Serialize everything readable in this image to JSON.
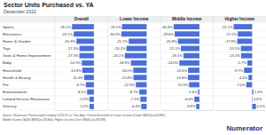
{
  "chart_data": {
    "type": "bar",
    "orientation": "horizontal",
    "title": "Sector Units Purchased vs. YA",
    "subtitle": "December 2022",
    "categories": [
      "Sports",
      "Electronics",
      "Home & Garden",
      "Toys",
      "Tools & Home Improvement",
      "Baby",
      "Household",
      "Health & Beauty",
      "Pet",
      "Entertainment",
      "Limited Service Restaurant",
      "Grocery"
    ],
    "series": [
      {
        "name": "Overall",
        "color": "#4a6fd6",
        "values": [
          -26.2,
          -24.1,
          -20.9,
          -17.3,
          -17.3,
          -14.5,
          -13.8,
          -11.6,
          -9.7,
          -8.1,
          -5.4,
          -5.2
        ],
        "value_labels": [
          "-26.2%",
          "-24.1%",
          "-20.9%",
          "-17.3%",
          "-17.3%",
          "-14.5%",
          "-13.8%",
          "-11.6%",
          "-9.7%",
          "-8.1%",
          "-5.4%",
          "-5.2%"
        ]
      },
      {
        "name": "Lower Income",
        "color": "#4a6fd6",
        "values": [
          -29.5,
          -30.3,
          -21.5,
          -24.2,
          -26.1,
          -18.8,
          -16.0,
          -15.8,
          -12.9,
          -8.7,
          -7.5,
          -6.4
        ],
        "value_labels": [
          "-29.5%",
          "-30.3%",
          "-21.5%",
          "-24.2%",
          "-26.1%",
          "-18.8%",
          "-16.0%",
          "-15.8%",
          "-12.9%",
          "-8.7%",
          "-7.5%",
          "-6.4%"
        ]
      },
      {
        "name": "Middle Income",
        "color": "#4a6fd6",
        "values": [
          -30.8,
          -29.6,
          -25.8,
          -22.1,
          -19.1,
          -24.0,
          -13.6,
          -13.8,
          -12.3,
          -1.6,
          -6.0,
          -3.8
        ],
        "value_labels": [
          "-30.8%",
          "-29.6%",
          "-25.8%",
          "-22.1%",
          "-19.1%",
          "-24.0%",
          "-13.6%",
          "-13.8%",
          "-12.3%",
          "-1.6%",
          "-6.0%",
          "-3.8%"
        ]
      },
      {
        "name": "Higher Income",
        "color": "#4a6fd6",
        "values": [
          -22.1,
          -17.2,
          -17.9,
          -13.5,
          -13.2,
          -5.7,
          -9.7,
          -4.4,
          -7.0,
          1.4,
          0.6,
          4.5
        ],
        "value_labels": [
          "-22.1%",
          "-17.2%",
          "-17.9%",
          "-13.5%",
          "-13.2%",
          "-5.7%",
          "-9.7%",
          "-4.4%",
          "-7.0%",
          "1.4%",
          "0.6%",
          "4.5%"
        ]
      }
    ],
    "xlim": [
      -45,
      15
    ],
    "tick_labels": false,
    "data_labels": true,
    "annotations": [
      "Source: Numerator Panel insights ending 12/31/22 vs. Year Ago. Overall threshold for Lower Income (Under $40K)(n=26,862),",
      "Middle Income ($40K-$80K)(n=28,800), Higher Income (Over $80K) (n=49,338).",
      "Numerator"
    ]
  }
}
